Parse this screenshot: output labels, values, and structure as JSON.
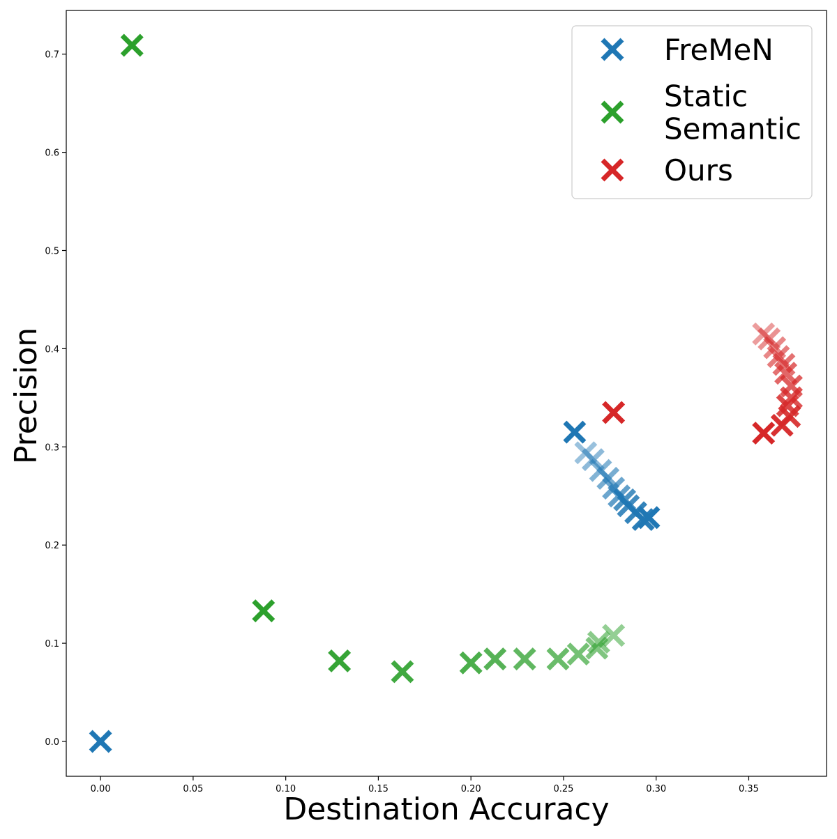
{
  "chart_data": {
    "type": "scatter",
    "title": "",
    "xlabel": "Destination Accuracy",
    "ylabel": "Precision",
    "xlim": [
      -0.0185,
      0.392
    ],
    "ylim": [
      -0.0355,
      0.7445
    ],
    "xticks": [
      "0.00",
      "0.05",
      "0.10",
      "0.15",
      "0.20",
      "0.25",
      "0.30",
      "0.35"
    ],
    "xtick_values": [
      0.0,
      0.05,
      0.1,
      0.15,
      0.2,
      0.25,
      0.3,
      0.35
    ],
    "yticks": [
      "0.0",
      "0.1",
      "0.2",
      "0.3",
      "0.4",
      "0.5",
      "0.6",
      "0.7"
    ],
    "ytick_values": [
      0.0,
      0.1,
      0.2,
      0.3,
      0.4,
      0.5,
      0.6,
      0.7
    ],
    "grid": false,
    "legend_position": "top-right",
    "marker": "x",
    "series": [
      {
        "name": "FreMeN",
        "color": "#1f77b4",
        "points": [
          {
            "x": 0.0,
            "y": 0.0,
            "alpha": 1.0
          },
          {
            "x": 0.256,
            "y": 0.315,
            "alpha": 1.0
          },
          {
            "x": 0.262,
            "y": 0.294,
            "alpha": 0.45
          },
          {
            "x": 0.266,
            "y": 0.287,
            "alpha": 0.5
          },
          {
            "x": 0.27,
            "y": 0.276,
            "alpha": 0.55
          },
          {
            "x": 0.274,
            "y": 0.268,
            "alpha": 0.6
          },
          {
            "x": 0.277,
            "y": 0.258,
            "alpha": 0.65
          },
          {
            "x": 0.28,
            "y": 0.25,
            "alpha": 0.7
          },
          {
            "x": 0.283,
            "y": 0.246,
            "alpha": 0.8
          },
          {
            "x": 0.285,
            "y": 0.24,
            "alpha": 0.85
          },
          {
            "x": 0.289,
            "y": 0.233,
            "alpha": 0.9
          },
          {
            "x": 0.293,
            "y": 0.226,
            "alpha": 0.95
          },
          {
            "x": 0.296,
            "y": 0.228,
            "alpha": 1.0
          }
        ]
      },
      {
        "name": "Static\nSemantic",
        "color": "#2ca02c",
        "points": [
          {
            "x": 0.017,
            "y": 0.709,
            "alpha": 1.0
          },
          {
            "x": 0.088,
            "y": 0.133,
            "alpha": 1.0
          },
          {
            "x": 0.129,
            "y": 0.082,
            "alpha": 0.95
          },
          {
            "x": 0.163,
            "y": 0.071,
            "alpha": 0.9
          },
          {
            "x": 0.2,
            "y": 0.08,
            "alpha": 0.85
          },
          {
            "x": 0.213,
            "y": 0.084,
            "alpha": 0.8
          },
          {
            "x": 0.229,
            "y": 0.084,
            "alpha": 0.75
          },
          {
            "x": 0.247,
            "y": 0.084,
            "alpha": 0.7
          },
          {
            "x": 0.258,
            "y": 0.089,
            "alpha": 0.65
          },
          {
            "x": 0.268,
            "y": 0.095,
            "alpha": 0.6
          },
          {
            "x": 0.269,
            "y": 0.101,
            "alpha": 0.55
          },
          {
            "x": 0.277,
            "y": 0.108,
            "alpha": 0.5
          }
        ]
      },
      {
        "name": "Ours",
        "color": "#d62728",
        "points": [
          {
            "x": 0.277,
            "y": 0.335,
            "alpha": 1.0
          },
          {
            "x": 0.358,
            "y": 0.415,
            "alpha": 0.45
          },
          {
            "x": 0.361,
            "y": 0.41,
            "alpha": 0.5
          },
          {
            "x": 0.364,
            "y": 0.401,
            "alpha": 0.55
          },
          {
            "x": 0.366,
            "y": 0.392,
            "alpha": 0.6
          },
          {
            "x": 0.369,
            "y": 0.384,
            "alpha": 0.65
          },
          {
            "x": 0.37,
            "y": 0.375,
            "alpha": 0.7
          },
          {
            "x": 0.373,
            "y": 0.362,
            "alpha": 0.75
          },
          {
            "x": 0.373,
            "y": 0.35,
            "alpha": 0.8
          },
          {
            "x": 0.371,
            "y": 0.342,
            "alpha": 0.85
          },
          {
            "x": 0.372,
            "y": 0.331,
            "alpha": 0.9
          },
          {
            "x": 0.368,
            "y": 0.322,
            "alpha": 0.95
          },
          {
            "x": 0.358,
            "y": 0.314,
            "alpha": 1.0
          }
        ]
      }
    ]
  }
}
